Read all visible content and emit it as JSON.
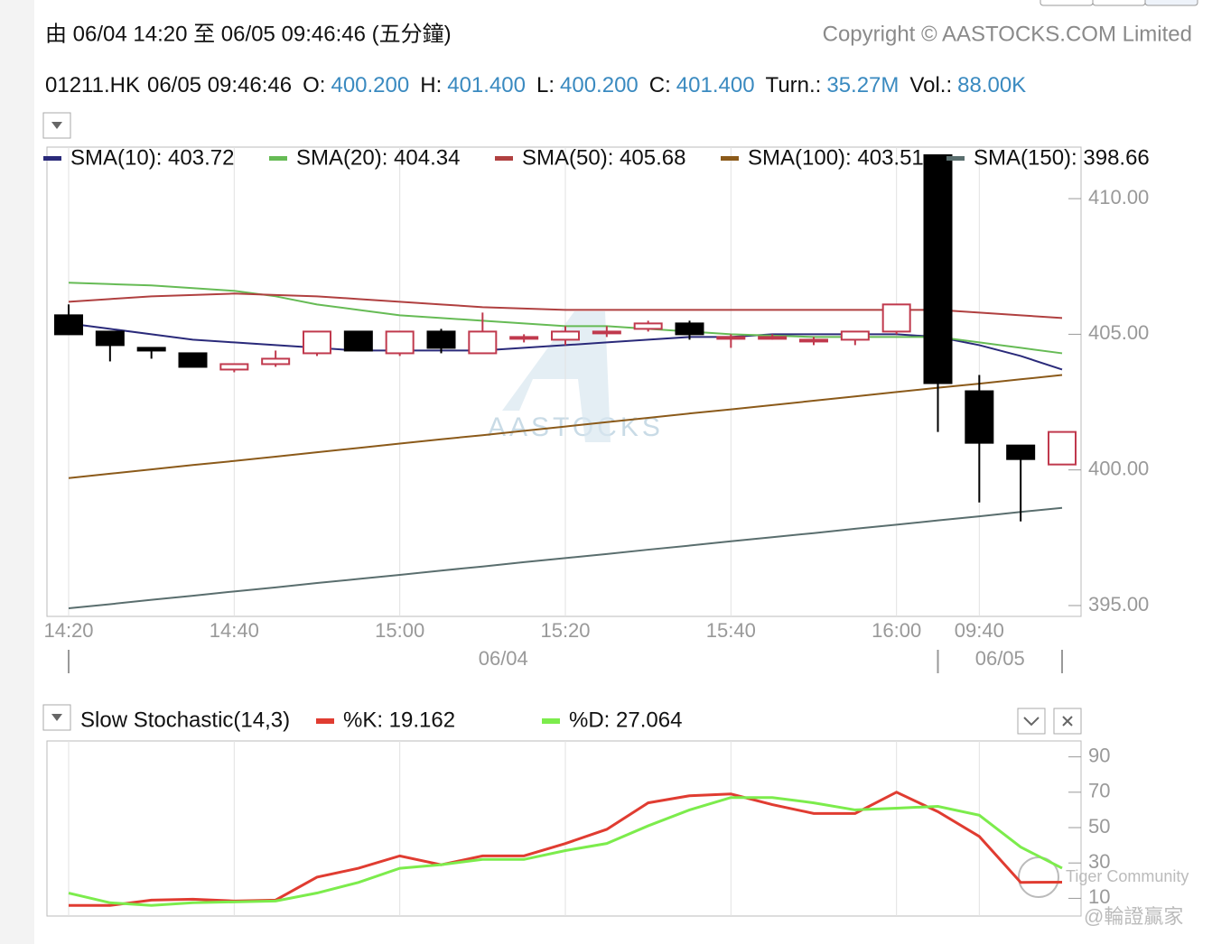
{
  "header": {
    "range": "由  06/04 14:20 至  06/05 09:46:46 (五分鐘)",
    "copyright": "Copyright © AASTOCKS.COM Limited",
    "symbol": "01211.HK",
    "time": "06/05 09:46:46",
    "quote": [
      {
        "label": "O:",
        "value": "400.200"
      },
      {
        "label": "H:",
        "value": "401.400"
      },
      {
        "label": "L:",
        "value": "400.200"
      },
      {
        "label": "C:",
        "value": "401.400"
      },
      {
        "label": "Turn.:",
        "value": "35.27M"
      },
      {
        "label": "Vol.:",
        "value": "88.00K"
      }
    ]
  },
  "watermarks": [
    "AASTOCKS",
    "Tiger Community",
    "@輪證贏家"
  ],
  "chart_data": [
    {
      "type": "candlestick",
      "categories": [
        "14:20",
        null,
        null,
        null,
        "14:40",
        null,
        null,
        null,
        "15:00",
        null,
        null,
        null,
        "15:20",
        null,
        null,
        null,
        "15:40",
        null,
        null,
        null,
        "16:00",
        null,
        "09:40",
        null,
        null
      ],
      "date_groups": [
        {
          "label": "06/04",
          "start": 0
        },
        {
          "label": "06/05",
          "start": 21
        }
      ],
      "open": [
        405.7,
        405.1,
        404.5,
        404.3,
        403.7,
        403.9,
        404.3,
        405.1,
        404.3,
        405.1,
        404.3,
        404.9,
        404.8,
        405.1,
        405.2,
        405.4,
        404.9,
        404.9,
        404.8,
        404.8,
        405.1,
        411.6,
        402.9,
        400.9,
        400.2
      ],
      "high": [
        406.1,
        405.1,
        404.5,
        404.3,
        403.9,
        404.4,
        405.1,
        405.1,
        405.1,
        405.2,
        405.8,
        405.0,
        405.3,
        405.3,
        405.5,
        405.5,
        405.0,
        405.0,
        404.9,
        405.1,
        406.1,
        411.6,
        403.5,
        400.9,
        401.4
      ],
      "low": [
        405.0,
        404.0,
        404.1,
        403.8,
        403.6,
        403.8,
        404.2,
        404.4,
        404.2,
        404.3,
        404.3,
        404.7,
        404.6,
        404.9,
        405.1,
        404.8,
        404.5,
        404.8,
        404.6,
        404.6,
        405.0,
        401.4,
        398.8,
        398.1,
        400.2
      ],
      "close": [
        405.0,
        404.6,
        404.4,
        403.8,
        403.9,
        404.1,
        405.1,
        404.4,
        405.1,
        404.5,
        405.1,
        404.9,
        405.1,
        405.1,
        405.4,
        405.0,
        404.9,
        404.9,
        404.8,
        405.1,
        406.1,
        403.2,
        401.0,
        400.4,
        401.4
      ],
      "up_color": "#c0394d",
      "down_color": "#000000",
      "series": [
        {
          "name": "SMA(10): 403.72",
          "color": "#2a2a7a",
          "values": [
            405.4,
            405.2,
            405.0,
            404.8,
            404.7,
            404.6,
            404.5,
            404.4,
            404.4,
            404.4,
            404.4,
            404.5,
            404.6,
            404.7,
            404.8,
            404.9,
            404.9,
            405.0,
            405.0,
            405.0,
            405.0,
            404.9,
            404.6,
            404.2,
            403.7
          ]
        },
        {
          "name": "SMA(20): 404.34",
          "color": "#66bb55",
          "values": [
            406.9,
            406.85,
            406.8,
            406.7,
            406.6,
            406.4,
            406.1,
            405.9,
            405.7,
            405.6,
            405.5,
            405.4,
            405.3,
            405.3,
            405.2,
            405.1,
            405.0,
            404.95,
            404.9,
            404.9,
            404.9,
            404.9,
            404.7,
            404.5,
            404.3
          ]
        },
        {
          "name": "SMA(50): 405.68",
          "color": "#b04040",
          "values": [
            406.2,
            406.3,
            406.4,
            406.45,
            406.5,
            406.45,
            406.4,
            406.3,
            406.2,
            406.1,
            406.0,
            405.95,
            405.9,
            405.9,
            405.9,
            405.9,
            405.9,
            405.9,
            405.9,
            405.9,
            405.9,
            405.9,
            405.8,
            405.7,
            405.6
          ]
        },
        {
          "name": "SMA(100): 403.51",
          "color": "#8b5a1a",
          "values": [
            399.7,
            399.86,
            400.02,
            400.18,
            400.33,
            400.49,
            400.65,
            400.81,
            400.97,
            401.13,
            401.28,
            401.44,
            401.6,
            401.76,
            401.92,
            402.08,
            402.23,
            402.39,
            402.55,
            402.71,
            402.87,
            403.03,
            403.18,
            403.34,
            403.5
          ]
        },
        {
          "name": "SMA(150): 398.66",
          "color": "#5a6e6e",
          "values": [
            394.9,
            395.05,
            395.21,
            395.36,
            395.52,
            395.67,
            395.83,
            395.98,
            396.13,
            396.29,
            396.44,
            396.6,
            396.75,
            396.9,
            397.06,
            397.21,
            397.37,
            397.52,
            397.67,
            397.83,
            397.98,
            398.14,
            398.29,
            398.45,
            398.6
          ]
        }
      ],
      "ylim": [
        394.6,
        411.9
      ],
      "yticks": [
        {
          "value": 410,
          "label": "410.00"
        },
        {
          "value": 405,
          "label": "405.00"
        },
        {
          "value": 400,
          "label": "400.00"
        },
        {
          "value": 395,
          "label": "395.00"
        }
      ],
      "grid": "x"
    },
    {
      "type": "line",
      "title": "Slow Stochastic(14,3)",
      "series": [
        {
          "name": "%K: 19.162",
          "color": "#e03c31",
          "values": [
            6,
            6,
            9,
            9.5,
            8.5,
            9,
            22,
            27,
            34,
            29,
            34,
            34,
            41,
            49,
            64,
            68,
            69,
            63,
            58,
            58,
            70,
            59,
            45,
            19,
            19.162
          ]
        },
        {
          "name": "%D: 27.064",
          "color": "#7cec4c",
          "values": [
            13,
            7.5,
            6,
            7.5,
            8,
            8.5,
            13,
            19,
            27,
            29,
            32,
            32,
            37,
            41,
            51,
            60,
            67,
            67,
            64,
            60,
            61,
            62,
            57,
            39,
            27.064
          ]
        }
      ],
      "ylim": [
        0,
        99
      ],
      "yticks": [
        90,
        70,
        50,
        30,
        10
      ],
      "grid": "x"
    }
  ]
}
